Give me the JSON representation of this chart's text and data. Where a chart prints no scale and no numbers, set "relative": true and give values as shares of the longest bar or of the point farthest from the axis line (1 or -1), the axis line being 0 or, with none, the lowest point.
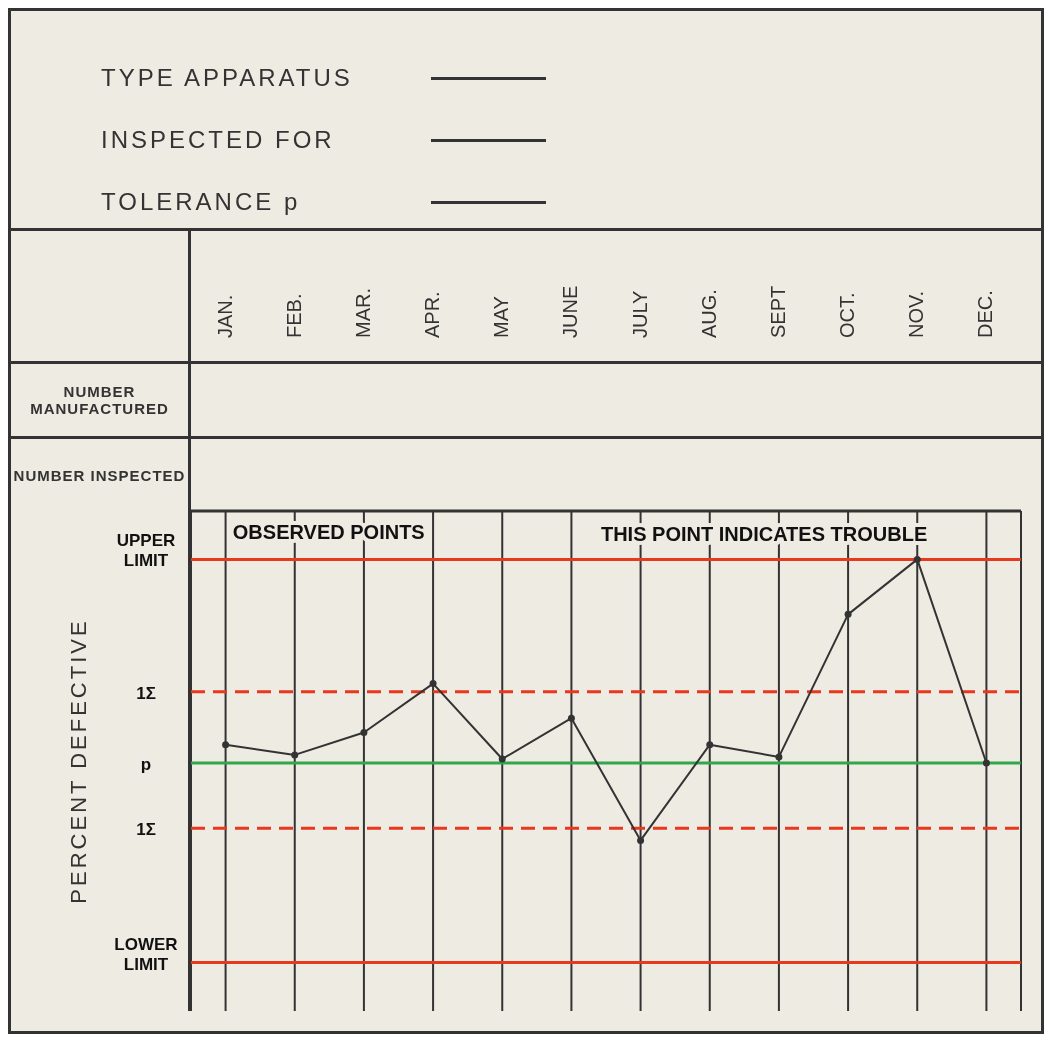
{
  "chart_data": {
    "type": "line",
    "relative": true,
    "ylabel": "PERCENT DEFECTIVE",
    "categories": [
      "JAN.",
      "FEB.",
      "MAR.",
      "APR.",
      "MAY",
      "JUNE",
      "JULY",
      "AUG.",
      "SEPT",
      "OCT.",
      "NOV.",
      "DEC."
    ],
    "series": [
      {
        "color": "#333333",
        "values": [
          0.09,
          0.04,
          0.15,
          0.39,
          0.02,
          0.22,
          -0.38,
          0.09,
          0.03,
          0.73,
          1,
          0
        ]
      }
    ],
    "marker": "circle",
    "line_style": "solid",
    "grid": "x",
    "legend": false,
    "ref_lines": [
      {
        "axis": "y",
        "value": 1,
        "label": "UPPER LIMIT",
        "color": "#e8391f",
        "line_style": "solid"
      },
      {
        "axis": "y",
        "value": 0.35,
        "label": "1Σ",
        "color": "#e8391f",
        "line_style": "dashed"
      },
      {
        "axis": "y",
        "value": 0,
        "label": "p",
        "color": "#2ea84a",
        "line_style": "solid"
      },
      {
        "axis": "y",
        "value": -0.32,
        "label": "1Σ",
        "color": "#e8391f",
        "line_style": "dashed"
      },
      {
        "axis": "y",
        "value": -0.98,
        "label": "LOWER LIMIT",
        "color": "#e8391f",
        "line_style": "solid"
      }
    ],
    "annotations": [
      "TYPE APPARATUS",
      "INSPECTED FOR",
      "TOLERANCE p",
      "NUMBER MANUFACTURED",
      "NUMBER INSPECTED",
      "OBSERVED POINTS",
      {
        "text": "THIS POINT INDICATES TROUBLE",
        "x": "NOV.",
        "y": 1
      }
    ]
  }
}
